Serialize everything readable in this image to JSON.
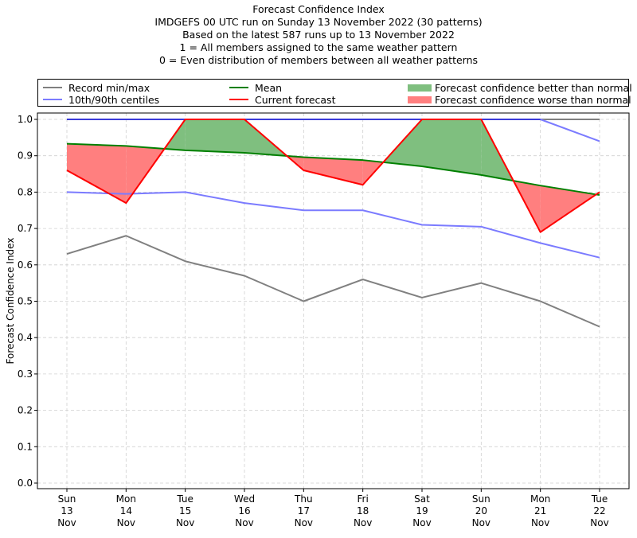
{
  "titles": {
    "line1": "Forecast Confidence Index",
    "line2": "IMDGEFS 00 UTC run on Sunday 13 November 2022 (30 patterns)",
    "line3": "Based on the latest 587 runs up to 13 November 2022",
    "line4": "1 = All members assigned to the same weather pattern",
    "line5": "0 = Even distribution of members between all weather patterns"
  },
  "legend": {
    "record": "Record min/max",
    "centiles": "10th/90th centiles",
    "mean": "Mean",
    "current": "Current forecast",
    "better": "Forecast confidence better than normal",
    "worse": "Forecast confidence worse than normal"
  },
  "colors": {
    "record": "#808080",
    "centiles": "#7b7bff",
    "top": "#3b3bd9",
    "mean": "#008000",
    "current": "#ff0000",
    "better": "#7fbf7f",
    "worse": "#ff7f7f",
    "grid": "#d0d0d0"
  },
  "chart_data": {
    "type": "line",
    "ylabel": "Forecast Confidence Index",
    "ylim": [
      0.0,
      1.0
    ],
    "yticks": [
      "0.0",
      "0.1",
      "0.2",
      "0.3",
      "0.4",
      "0.5",
      "0.6",
      "0.7",
      "0.8",
      "0.9",
      "1.0"
    ],
    "grid": true,
    "legend_position": "top",
    "categories": [
      [
        "Sun",
        "13",
        "Nov"
      ],
      [
        "Mon",
        "14",
        "Nov"
      ],
      [
        "Tue",
        "15",
        "Nov"
      ],
      [
        "Wed",
        "16",
        "Nov"
      ],
      [
        "Thu",
        "17",
        "Nov"
      ],
      [
        "Fri",
        "18",
        "Nov"
      ],
      [
        "Sat",
        "19",
        "Nov"
      ],
      [
        "Sun",
        "20",
        "Nov"
      ],
      [
        "Mon",
        "21",
        "Nov"
      ],
      [
        "Tue",
        "22",
        "Nov"
      ]
    ],
    "series": [
      {
        "name": "Record min/max",
        "role": "record_min",
        "values": [
          0.63,
          0.68,
          0.61,
          0.57,
          0.5,
          0.56,
          0.51,
          0.55,
          0.5,
          0.43
        ]
      },
      {
        "name": "Record min/max",
        "role": "record_max",
        "values": [
          1.0,
          1.0,
          1.0,
          1.0,
          1.0,
          1.0,
          1.0,
          1.0,
          1.0,
          1.0
        ]
      },
      {
        "name": "10th/90th centiles",
        "role": "p10",
        "values": [
          0.8,
          0.795,
          0.8,
          0.77,
          0.75,
          0.75,
          0.71,
          0.705,
          0.66,
          0.62
        ]
      },
      {
        "name": "10th/90th centiles",
        "role": "p90",
        "values": [
          1.0,
          1.0,
          1.0,
          1.0,
          1.0,
          1.0,
          1.0,
          1.0,
          1.0,
          0.94
        ]
      },
      {
        "name": "Mean",
        "role": "mean",
        "values": [
          0.933,
          0.927,
          0.915,
          0.908,
          0.896,
          0.888,
          0.871,
          0.847,
          0.818,
          0.792
        ]
      },
      {
        "name": "Current forecast",
        "role": "current",
        "values": [
          0.86,
          0.77,
          1.0,
          1.0,
          0.86,
          0.82,
          1.0,
          1.0,
          0.69,
          0.8
        ]
      }
    ]
  }
}
